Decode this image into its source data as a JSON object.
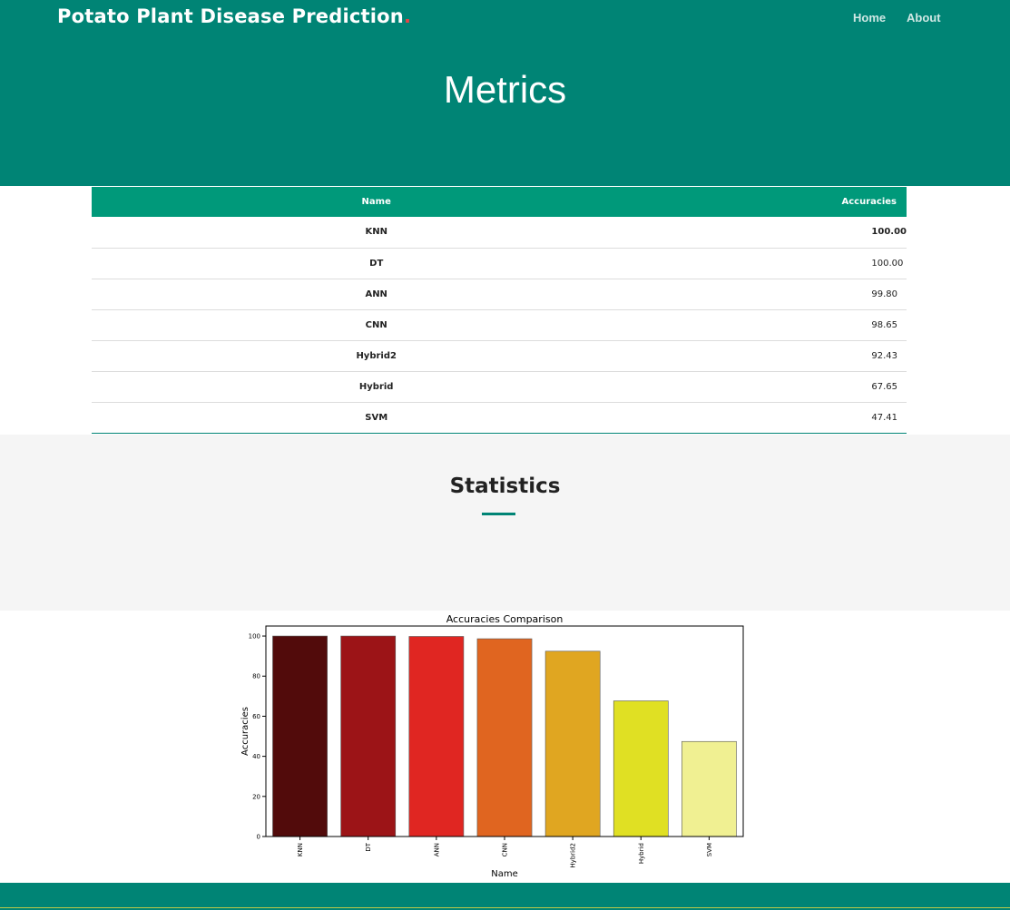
{
  "navbar": {
    "brand": "Potato Plant Disease Prediction",
    "brand_dot": ".",
    "links": [
      "Home",
      "About"
    ]
  },
  "hero": {
    "title": "Metrics"
  },
  "table": {
    "headers": [
      "Name",
      "Accuracies"
    ],
    "rows": [
      {
        "name": "KNN",
        "accuracy": "100.00"
      },
      {
        "name": "DT",
        "accuracy": "100.00"
      },
      {
        "name": "ANN",
        "accuracy": "99.80"
      },
      {
        "name": "CNN",
        "accuracy": "98.65"
      },
      {
        "name": "Hybrid2",
        "accuracy": "92.43"
      },
      {
        "name": "Hybrid",
        "accuracy": "67.65"
      },
      {
        "name": "SVM",
        "accuracy": "47.41"
      }
    ]
  },
  "statistics": {
    "title": "Statistics"
  },
  "colors": {
    "primary": "#008475",
    "table_header": "#00997a",
    "bar_colors": [
      "#520b0b",
      "#9c1417",
      "#e02622",
      "#e06520",
      "#e0a621",
      "#e0e023",
      "#f0f092"
    ]
  },
  "chart_data": {
    "type": "bar",
    "title": "Accuracies Comparison",
    "xlabel": "Name",
    "ylabel": "Accuracies",
    "categories": [
      "KNN",
      "DT",
      "ANN",
      "CNN",
      "Hybrid2",
      "Hybrid",
      "SVM"
    ],
    "values": [
      100.0,
      100.0,
      99.8,
      98.65,
      92.43,
      67.65,
      47.41
    ],
    "ylim": [
      0,
      105
    ],
    "yticks": [
      0,
      20,
      40,
      60,
      80,
      100
    ],
    "grid": false,
    "legend": "none"
  }
}
